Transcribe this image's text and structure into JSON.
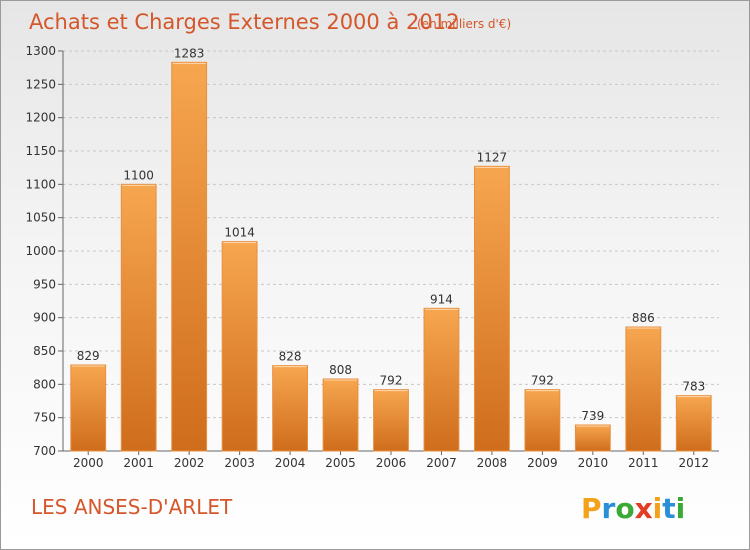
{
  "chart_data": {
    "type": "bar",
    "title": "Achats et Charges Externes 2000 à 2012",
    "subtitle": "(en milliers d'€)",
    "categories": [
      "2000",
      "2001",
      "2002",
      "2003",
      "2004",
      "2005",
      "2006",
      "2007",
      "2008",
      "2009",
      "2010",
      "2011",
      "2012"
    ],
    "values": [
      829,
      1100,
      1283,
      1014,
      828,
      808,
      792,
      914,
      1127,
      792,
      739,
      886,
      783
    ],
    "ylim": [
      700,
      1300
    ],
    "yticks": [
      700,
      750,
      800,
      850,
      900,
      950,
      1000,
      1050,
      1100,
      1150,
      1200,
      1250,
      1300
    ],
    "grid": true,
    "bar_color": "#f0913a",
    "bar_color_dark": "#d2711e"
  },
  "commune": "LES ANSES-D'ARLET",
  "logo": {
    "letters": [
      "P",
      "r",
      "o",
      "x",
      "i",
      "t",
      "i"
    ],
    "colors": [
      "#f2a31b",
      "#2a8fd6",
      "#3aa935",
      "#e33b24",
      "#f2a31b",
      "#2a8fd6",
      "#3aa935"
    ]
  }
}
